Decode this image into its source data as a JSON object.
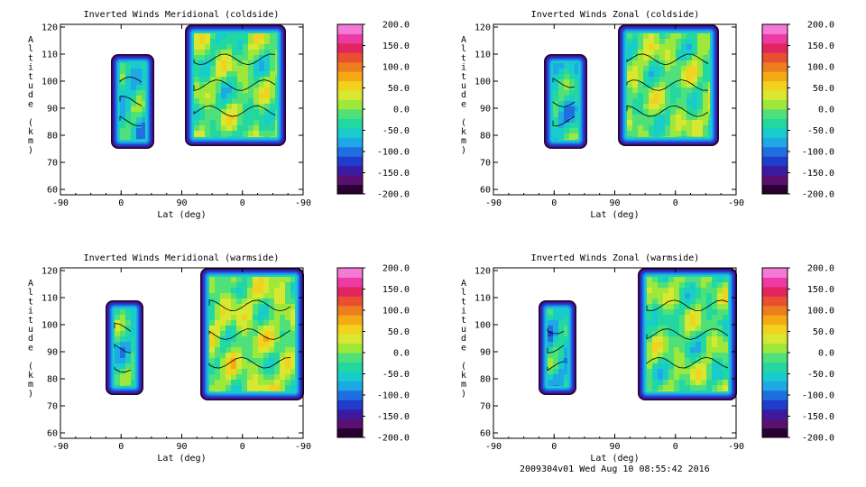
{
  "footer": "2009304v01 Wed Aug 10 08:55:42 2016",
  "colors": {
    "colorbar": [
      "#2a0033",
      "#5a1070",
      "#3a1aa0",
      "#1e3dcc",
      "#1f6fe0",
      "#1ea8e6",
      "#19cccc",
      "#23d7a0",
      "#4fe07a",
      "#9ee83c",
      "#d8e830",
      "#f2d21e",
      "#f4aa14",
      "#ee7d1e",
      "#e85030",
      "#e22560",
      "#ee3aa4",
      "#f57ad6"
    ]
  },
  "chart_data": [
    {
      "type": "heatmap",
      "title": "Inverted Winds Meridional (coldside)",
      "xlabel": "Lat (deg)",
      "ylabel": "Altitude (km)",
      "x_ticks": [
        "-90",
        "0",
        "90",
        "0",
        "-90"
      ],
      "y_ticks": [
        "60",
        "70",
        "80",
        "90",
        "100",
        "110",
        "120"
      ],
      "ylim": [
        58,
        121
      ],
      "colorbar_labels": [
        "200.0",
        "150.0",
        "100.0",
        "50.0",
        "0.0",
        "-50.0",
        "-100.0",
        "-150.0",
        "-200.0"
      ],
      "colorbar_range": [
        -200,
        200
      ]
    },
    {
      "type": "heatmap",
      "title": "Inverted Winds Zonal (coldside)",
      "xlabel": "Lat (deg)",
      "ylabel": "Altitude (km)",
      "x_ticks": [
        "-90",
        "0",
        "90",
        "0",
        "-90"
      ],
      "y_ticks": [
        "60",
        "70",
        "80",
        "90",
        "100",
        "110",
        "120"
      ],
      "ylim": [
        58,
        121
      ],
      "colorbar_labels": [
        "200.0",
        "150.0",
        "100.0",
        "50.0",
        "0.0",
        "-50.0",
        "-100.0",
        "-150.0",
        "-200.0"
      ],
      "colorbar_range": [
        -200,
        200
      ]
    },
    {
      "type": "heatmap",
      "title": "Inverted Winds Meridional (warmside)",
      "xlabel": "Lat (deg)",
      "ylabel": "Altitude (km)",
      "x_ticks": [
        "-90",
        "0",
        "90",
        "0",
        "-90"
      ],
      "y_ticks": [
        "60",
        "70",
        "80",
        "90",
        "100",
        "110",
        "120"
      ],
      "ylim": [
        58,
        121
      ],
      "colorbar_labels": [
        "200.0",
        "150.0",
        "100.0",
        "50.0",
        "0.0",
        "-50.0",
        "-100.0",
        "-150.0",
        "-200.0"
      ],
      "colorbar_range": [
        -200,
        200
      ]
    },
    {
      "type": "heatmap",
      "title": "Inverted Winds Zonal (warmside)",
      "xlabel": "Lat (deg)",
      "ylabel": "Altitude (km)",
      "x_ticks": [
        "-90",
        "0",
        "90",
        "0",
        "-90"
      ],
      "y_ticks": [
        "60",
        "70",
        "80",
        "90",
        "100",
        "110",
        "120"
      ],
      "ylim": [
        58,
        121
      ],
      "colorbar_labels": [
        "200.0",
        "150.0",
        "100.0",
        "50.0",
        "0.0",
        "-50.0",
        "-100.0",
        "-150.0",
        "-200.0"
      ],
      "colorbar_range": [
        -200,
        200
      ]
    }
  ]
}
